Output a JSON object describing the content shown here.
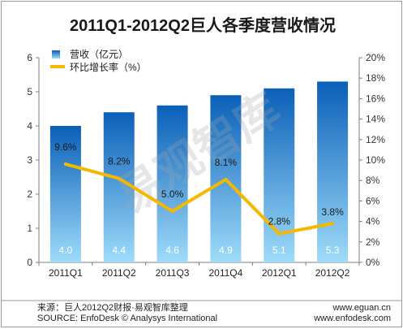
{
  "chart_data": {
    "type": "bar",
    "title": "2011Q1-2012Q2巨人各季度营收情况",
    "categories": [
      "2011Q1",
      "2011Q2",
      "2011Q3",
      "2011Q4",
      "2012Q1",
      "2012Q2"
    ],
    "series": [
      {
        "name": "营收（亿元）",
        "type": "bar",
        "axis": "left",
        "values": [
          4.0,
          4.4,
          4.6,
          4.9,
          5.1,
          5.3
        ],
        "labels": [
          "4.0",
          "4.4",
          "4.6",
          "4.9",
          "5.1",
          "5.3"
        ]
      },
      {
        "name": "环比增长率（%）",
        "type": "line",
        "axis": "right",
        "values": [
          9.6,
          8.2,
          5.0,
          8.1,
          2.8,
          3.8
        ],
        "labels": [
          "9.6%",
          "8.2%",
          "5.0%",
          "8.1%",
          "2.8%",
          "3.8%"
        ]
      }
    ],
    "y_left": {
      "lim": [
        0,
        6
      ],
      "ticks": [
        "0",
        "1",
        "2",
        "3",
        "4",
        "5",
        "6"
      ]
    },
    "y_right": {
      "lim": [
        0,
        20
      ],
      "ticks": [
        "0%",
        "2%",
        "4%",
        "6%",
        "8%",
        "10%",
        "12%",
        "14%",
        "16%",
        "18%",
        "20%"
      ]
    },
    "grid": false,
    "legend_position": "top-left",
    "colors": {
      "bar_top": "#0a5fb8",
      "bar_bottom": "#9fdcfa",
      "line": "#f5b800",
      "axis": "#7f7f7f"
    }
  },
  "watermark": "易观智库",
  "footer": {
    "source_cn": "来源：巨人2012Q2财报·易观智库整理",
    "source_en": "SOURCE: EnfoDesk © Analysys International",
    "url_1": "www.eguan.cn",
    "url_2": "www.enfodesk.com"
  }
}
